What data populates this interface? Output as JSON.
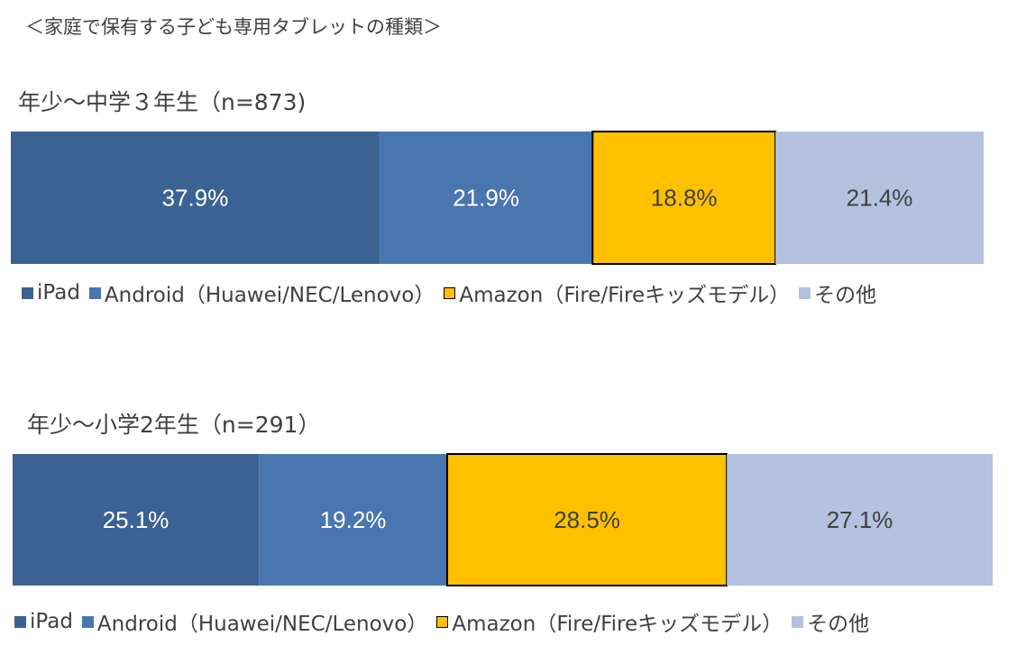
{
  "figure_title": "＜家庭で保有する子ども専用タブレットの種類＞",
  "chart_data": [
    {
      "type": "bar",
      "orientation": "horizontal-stacked-100",
      "title": "年少～中学３年生（n=873)",
      "categories": [
        "年少～中学３年生（n=873)"
      ],
      "series": [
        {
          "name": "iPad",
          "values": [
            37.9
          ],
          "label": "37.9%",
          "color": "#3B6293"
        },
        {
          "name": "Android（Huawei/NEC/Lenovo）",
          "values": [
            21.9
          ],
          "label": "21.9%",
          "color": "#4A76B0"
        },
        {
          "name": "Amazon（Fire/Fireキッズモデル）",
          "values": [
            18.8
          ],
          "label": "18.8%",
          "color": "#FFC000"
        },
        {
          "name": "その他",
          "values": [
            21.4
          ],
          "label": "21.4%",
          "color": "#B4C2DF"
        }
      ],
      "xlim": [
        0,
        100
      ],
      "legend_position": "bottom-left",
      "grid": false
    },
    {
      "type": "bar",
      "orientation": "horizontal-stacked-100",
      "title": "年少～小学2年生（n=291）",
      "categories": [
        "年少～小学2年生（n=291）"
      ],
      "series": [
        {
          "name": "iPad",
          "values": [
            25.1
          ],
          "label": "25.1%",
          "color": "#3B6293"
        },
        {
          "name": "Android（Huawei/NEC/Lenovo）",
          "values": [
            19.2
          ],
          "label": "19.2%",
          "color": "#4A76B0"
        },
        {
          "name": "Amazon（Fire/Fireキッズモデル）",
          "values": [
            28.5
          ],
          "label": "28.5%",
          "color": "#FFC000"
        },
        {
          "name": "その他",
          "values": [
            27.1
          ],
          "label": "27.1%",
          "color": "#B4C2DF"
        }
      ],
      "xlim": [
        0,
        100
      ],
      "legend_position": "bottom-left",
      "grid": false
    }
  ]
}
